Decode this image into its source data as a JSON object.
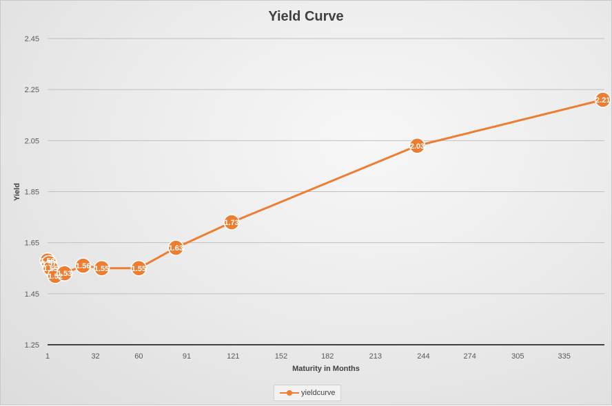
{
  "chart_data": {
    "type": "line",
    "title": "Yield Curve",
    "xlabel": "Maturity in Months",
    "ylabel": "Yield",
    "series": [
      {
        "name": "yieldcurve",
        "color": "#ED7D31",
        "x": [
          1,
          2,
          3,
          6,
          12,
          24,
          36,
          60,
          84,
          120,
          240,
          360
        ],
        "values": [
          1.58,
          1.57,
          1.55,
          1.52,
          1.53,
          1.56,
          1.55,
          1.55,
          1.63,
          1.73,
          2.03,
          2.21
        ],
        "data_labels": [
          "1.58",
          "1.57",
          "1.55",
          "1.52",
          "1.53",
          "1.56",
          "1.55",
          "1.55",
          "1.63",
          "1.73",
          "2.03",
          "2.21"
        ]
      }
    ],
    "x_ticks": [
      "1",
      "32",
      "60",
      "91",
      "121",
      "152",
      "182",
      "213",
      "244",
      "274",
      "305",
      "335"
    ],
    "y_ticks": [
      "1.25",
      "1.45",
      "1.65",
      "1.85",
      "2.05",
      "2.25",
      "2.45"
    ],
    "xlim": [
      1,
      361
    ],
    "ylim": [
      1.25,
      2.45
    ],
    "grid": true,
    "legend_position": "bottom"
  }
}
